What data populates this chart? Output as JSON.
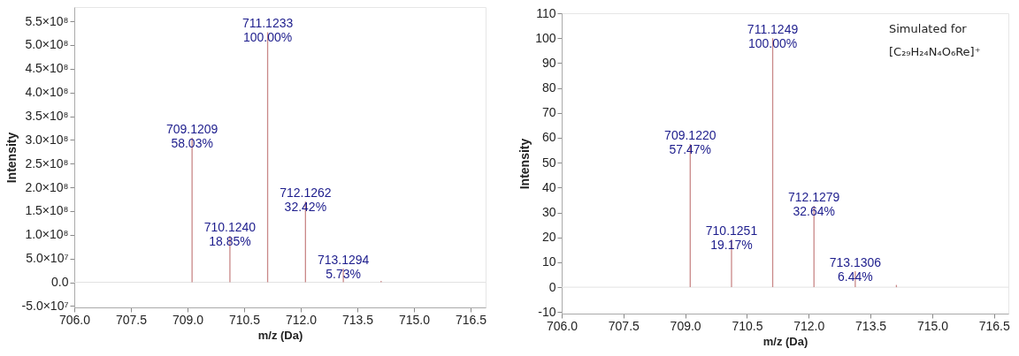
{
  "chart_data": [
    {
      "type": "bar",
      "xlabel": "m/z (Da)",
      "ylabel": "Intensity",
      "x": [
        709.1209,
        710.124,
        711.1233,
        712.1262,
        713.1294,
        714.13
      ],
      "values": [
        305000000,
        98000000,
        527000000,
        170000000,
        29000000,
        3000000
      ],
      "color": "#c98888",
      "xlim": [
        706,
        716.9
      ],
      "xticks": [
        {
          "value": 706,
          "label": "706.0"
        },
        707.5,
        {
          "value": 709,
          "label": "709.0"
        },
        710.5,
        {
          "value": 712,
          "label": "712.0"
        },
        713.5,
        {
          "value": 715,
          "label": "715.0"
        },
        716.5
      ],
      "ylim": [
        -53000000,
        580000000
      ],
      "yticks": [
        {
          "value": -50000000,
          "label": "-5.0×10⁷"
        },
        {
          "value": 0,
          "label": "0.0"
        },
        {
          "value": 50000000,
          "label": "5.0×10⁷"
        },
        {
          "value": 100000000,
          "label": "1.0×10⁸"
        },
        {
          "value": 150000000,
          "label": "1.5×10⁸"
        },
        {
          "value": 200000000,
          "label": "2.0×10⁸"
        },
        {
          "value": 250000000,
          "label": "2.5×10⁸"
        },
        {
          "value": 300000000,
          "label": "3.0×10⁸"
        },
        {
          "value": 350000000,
          "label": "3.5×10⁸"
        },
        {
          "value": 400000000,
          "label": "4.0×10⁸"
        },
        {
          "value": 450000000,
          "label": "4.5×10⁸"
        },
        {
          "value": 500000000,
          "label": "5.0×10⁸"
        },
        {
          "value": 550000000,
          "label": "5.5×10⁸"
        }
      ],
      "ref_lines": [
        {
          "axis": "y",
          "value": 0,
          "color": "#e2e2e2"
        }
      ],
      "annotations": [
        {
          "text": "709.1209\n58.03%",
          "x": 709.1209,
          "y": 305000000
        },
        {
          "text": "710.1240\n18.85%",
          "x": 710.124,
          "y": 98000000
        },
        {
          "text": "711.1233\n100.00%",
          "x": 711.1233,
          "y": 527000000
        },
        {
          "text": "712.1262\n32.42%",
          "x": 712.1262,
          "y": 170000000
        },
        {
          "text": "713.1294\n5.73%",
          "x": 713.1294,
          "y": 29000000
        }
      ]
    },
    {
      "type": "bar",
      "xlabel": "m/z (Da)",
      "ylabel": "Intensity",
      "x": [
        709.122,
        710.1251,
        711.1249,
        712.1279,
        713.1306,
        714.13
      ],
      "values": [
        57.47,
        19.17,
        100,
        32.64,
        6.44,
        0.9
      ],
      "color": "#c98888",
      "xlim": [
        706,
        716.85
      ],
      "xticks": [
        {
          "value": 706,
          "label": "706.0"
        },
        707.5,
        {
          "value": 709,
          "label": "709.0"
        },
        710.5,
        {
          "value": 712,
          "label": "712.0"
        },
        713.5,
        {
          "value": 715,
          "label": "715.0"
        },
        716.5
      ],
      "ylim": [
        -10.6,
        110
      ],
      "yticks": [
        -10,
        0,
        10,
        20,
        30,
        40,
        50,
        60,
        70,
        80,
        90,
        100,
        110
      ],
      "ref_lines": [
        {
          "axis": "y",
          "value": 0,
          "color": "#e2e2e2"
        }
      ],
      "annotations": [
        {
          "text": "709.1220\n57.47%",
          "x": 709.122,
          "y": 57.47
        },
        {
          "text": "710.1251\n19.17%",
          "x": 710.1251,
          "y": 19.17
        },
        {
          "text": "711.1249\n100.00%",
          "x": 711.1249,
          "y": 100
        },
        {
          "text": "712.1279\n32.64%",
          "x": 712.1279,
          "y": 32.64
        },
        {
          "text": "713.1306\n6.44%",
          "x": 713.1306,
          "y": 6.44
        },
        "Simulated for\n[C₂₉H₂₄N₄O₆Re]⁺"
      ]
    }
  ]
}
